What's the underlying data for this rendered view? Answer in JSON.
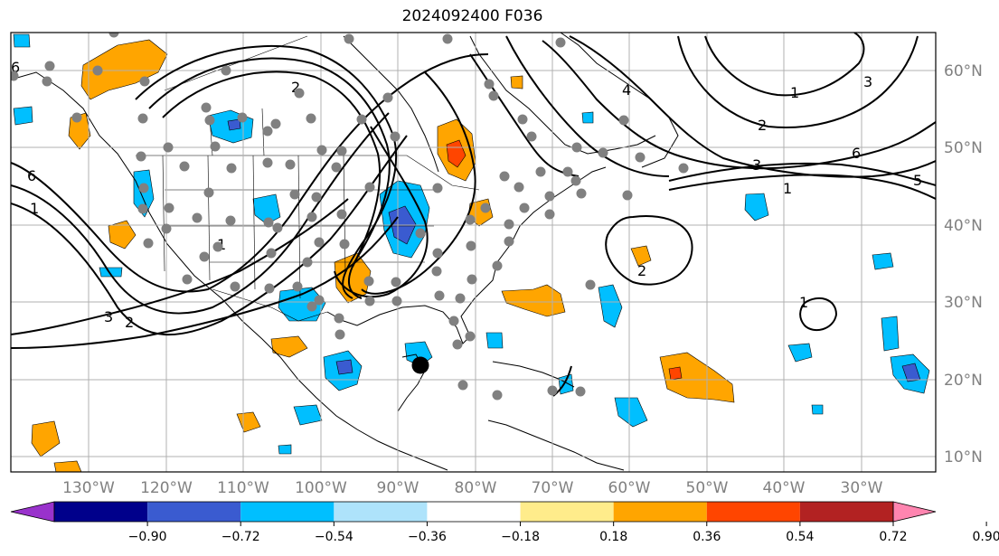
{
  "title": "2024092400 F036",
  "longitude_labels": [
    "130°W",
    "120°W",
    "110°W",
    "100°W",
    "90°W",
    "80°W",
    "70°W",
    "60°W",
    "50°W",
    "40°W",
    "30°W"
  ],
  "latitude_labels": [
    "60°N",
    "50°N",
    "40°N",
    "30°N",
    "20°N",
    "10°N"
  ],
  "colorbar": {
    "tick_labels": [
      "−0.90",
      "−0.72",
      "−0.54",
      "−0.36",
      "−0.18",
      "0.18",
      "0.36",
      "0.54",
      "0.72",
      "0.90"
    ],
    "colors": [
      "#9932cc",
      "#00008b",
      "#3a5bd0",
      "#00bfff",
      "#aee3fb",
      "#ffffff",
      "#ffec8b",
      "#ffa500",
      "#ff4500",
      "#b22222",
      "#ff85b0"
    ]
  },
  "contour_labels": [
    "6",
    "1",
    "3",
    "2",
    "1",
    "2",
    "3",
    "6",
    "5",
    "1",
    "3",
    "2",
    "4",
    "1",
    "2",
    "1",
    "6"
  ],
  "legend_colors": {
    "fill_warm": "#ffa500",
    "fill_hot": "#ff4500",
    "fill_cool": "#00bfff",
    "fill_cold": "#3a5bd0",
    "station_dot": "#808080",
    "storm_center": "#000000"
  }
}
